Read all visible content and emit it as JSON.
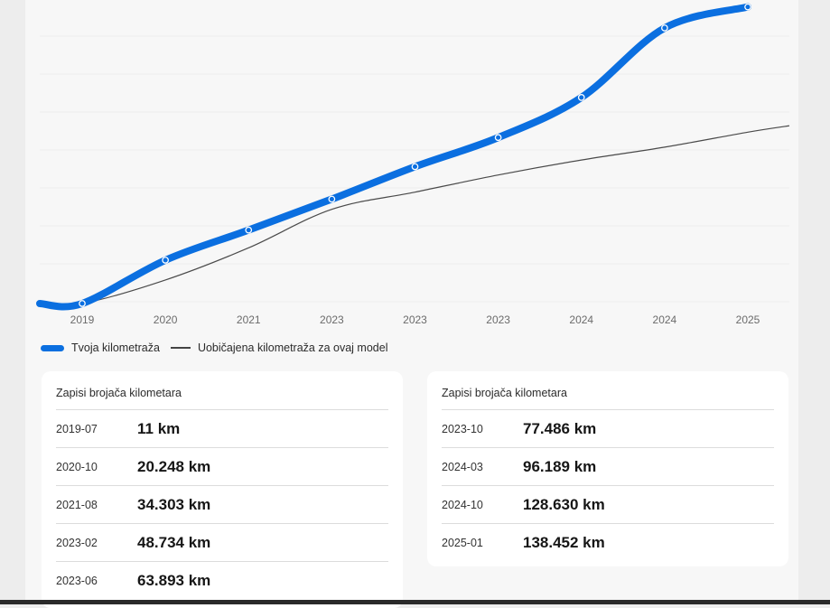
{
  "chart_data": {
    "type": "line",
    "x_tick_labels": [
      "2019",
      "2020",
      "2021",
      "2023",
      "2023",
      "2023",
      "2024",
      "2024",
      "2025"
    ],
    "series": [
      {
        "name": "Tvoja kilometraža",
        "color": "#0b6fe0",
        "style": "thick",
        "points": [
          {
            "date": "2019-07",
            "value": 11
          },
          {
            "date": "2020-10",
            "value": 20248
          },
          {
            "date": "2021-08",
            "value": 34303
          },
          {
            "date": "2023-02",
            "value": 48734
          },
          {
            "date": "2023-06",
            "value": 63893
          },
          {
            "date": "2023-10",
            "value": 77486
          },
          {
            "date": "2024-03",
            "value": 96189
          },
          {
            "date": "2024-10",
            "value": 128630
          },
          {
            "date": "2025-01",
            "value": 138452
          }
        ]
      },
      {
        "name": "Uobičajena kilometraža za ovaj model",
        "color": "#4a4a4a",
        "style": "thin",
        "values": [
          0,
          11000,
          26000,
          44000,
          52000,
          60000,
          67000,
          73000,
          80000
        ]
      }
    ],
    "ylim": [
      0,
      140000
    ],
    "grid": true,
    "legend_position": "bottom-left"
  },
  "legend": {
    "series1": "Tvoja kilometraža",
    "series2": "Uobičajena kilometraža za ovaj model"
  },
  "records_left": {
    "title": "Zapisi brojača kilometara",
    "rows": [
      {
        "date": "2019-07",
        "value": "11 km"
      },
      {
        "date": "2020-10",
        "value": "20.248 km"
      },
      {
        "date": "2021-08",
        "value": "34.303 km"
      },
      {
        "date": "2023-02",
        "value": "48.734 km"
      },
      {
        "date": "2023-06",
        "value": "63.893 km"
      }
    ]
  },
  "records_right": {
    "title": "Zapisi brojača kilometara",
    "rows": [
      {
        "date": "2023-10",
        "value": "77.486 km"
      },
      {
        "date": "2024-03",
        "value": "96.189 km"
      },
      {
        "date": "2024-10",
        "value": "128.630 km"
      },
      {
        "date": "2025-01",
        "value": "138.452 km"
      }
    ]
  }
}
